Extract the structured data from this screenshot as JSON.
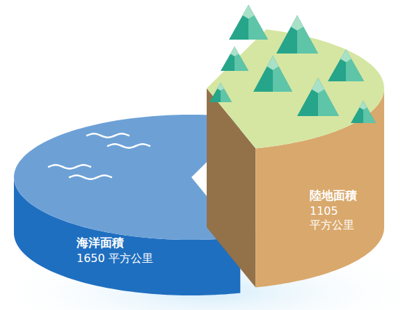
{
  "chart_data": {
    "type": "pie",
    "categories": [
      "海洋面積",
      "陸地面積"
    ],
    "values": [
      1650,
      1105
    ],
    "value_labels": [
      "1650 平方公里",
      "1105 平方公里"
    ],
    "colors": [
      "#1f6fc0",
      "#d9a86c"
    ],
    "data_labels": true
  }
}
